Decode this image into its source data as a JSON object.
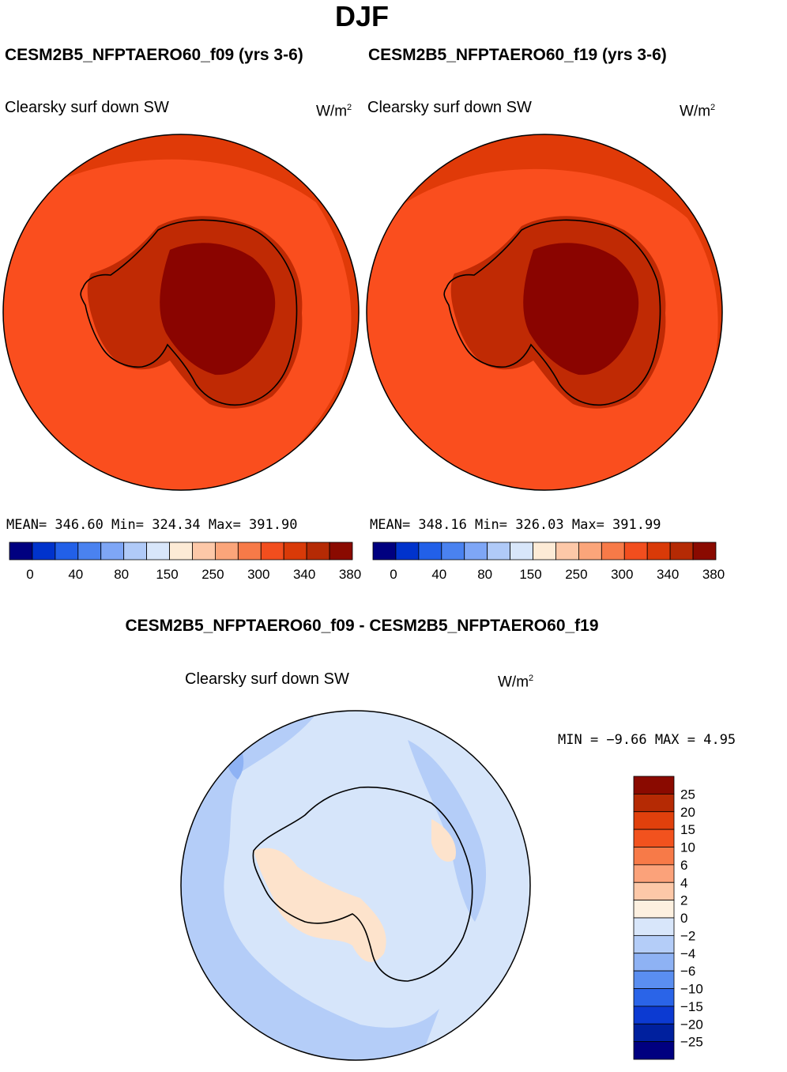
{
  "page_title": "DJF",
  "panels": {
    "left": {
      "case_title": "CESM2B5_NFPTAERO60_f09 (yrs 3-6)",
      "variable": "Clearsky surf down SW",
      "units": "W/m",
      "units_exp": "2",
      "stats": "MEAN=  346.60   Min=  324.34   Max=  391.90"
    },
    "right": {
      "case_title": "CESM2B5_NFPTAERO60_f19 (yrs 3-6)",
      "variable": "Clearsky surf down SW",
      "units": "W/m",
      "units_exp": "2",
      "stats": "MEAN=  348.16   Min=  326.03   Max=  391.99"
    },
    "diff": {
      "case_title": "CESM2B5_NFPTAERO60_f09 - CESM2B5_NFPTAERO60_f19",
      "variable": "Clearsky surf down SW",
      "units": "W/m",
      "units_exp": "2",
      "stats": "MIN =   −9.66  MAX =    4.95"
    }
  },
  "chart_data": [
    {
      "type": "heatmap",
      "title": "CESM2B5_NFPTAERO60_f09 (yrs 3-6)",
      "variable": "Clearsky surf down SW",
      "units": "W/m2",
      "projection": "south-polar-stereographic",
      "mean": 346.6,
      "min": 324.34,
      "max": 391.9,
      "colorbar_levels": [
        0,
        40,
        80,
        150,
        250,
        300,
        340,
        380
      ],
      "colorbar_colors": [
        "#000080",
        "#0033cc",
        "#2260e8",
        "#4a82f0",
        "#7ea6f6",
        "#b0caf8",
        "#d8e6fa",
        "#fdebd6",
        "#fdc8a8",
        "#fba57a",
        "#f77a48",
        "#f24e1e",
        "#d93a08",
        "#b52a04",
        "#8a0a00"
      ]
    },
    {
      "type": "heatmap",
      "title": "CESM2B5_NFPTAERO60_f19 (yrs 3-6)",
      "variable": "Clearsky surf down SW",
      "units": "W/m2",
      "projection": "south-polar-stereographic",
      "mean": 348.16,
      "min": 326.03,
      "max": 391.99,
      "colorbar_levels": [
        0,
        40,
        80,
        150,
        250,
        300,
        340,
        380
      ],
      "colorbar_colors": [
        "#000080",
        "#0033cc",
        "#2260e8",
        "#4a82f0",
        "#7ea6f6",
        "#b0caf8",
        "#d8e6fa",
        "#fdebd6",
        "#fdc8a8",
        "#fba57a",
        "#f77a48",
        "#f24e1e",
        "#d93a08",
        "#b52a04",
        "#8a0a00"
      ]
    },
    {
      "type": "heatmap",
      "title": "CESM2B5_NFPTAERO60_f09 - CESM2B5_NFPTAERO60_f19",
      "variable": "Clearsky surf down SW",
      "units": "W/m2",
      "projection": "south-polar-stereographic",
      "min": -9.66,
      "max": 4.95,
      "colorbar_levels": [
        "25",
        "20",
        "15",
        "10",
        "6",
        "4",
        "2",
        "0",
        "−2",
        "−4",
        "−6",
        "−10",
        "−15",
        "−20",
        "−25"
      ],
      "colorbar_colors": [
        "#8a0a00",
        "#b52a04",
        "#e0400c",
        "#f2521e",
        "#f77a48",
        "#fba27a",
        "#fdc8a8",
        "#fdf0e0",
        "#d8e6fa",
        "#b4cdf8",
        "#8eb2f4",
        "#5a8ef0",
        "#2a64e8",
        "#0c3ad2",
        "#00209e",
        "#000080"
      ]
    }
  ],
  "colors": {
    "ocean_left": "#fa4e1e",
    "ocean_outer": "#e03a08",
    "continent_rim": "#c02a04",
    "continent_core": "#8a0400",
    "diff_background": "#d6e5fa",
    "diff_light_blue": "#b4cdf8",
    "diff_pale_orange": "#fde3cc"
  }
}
